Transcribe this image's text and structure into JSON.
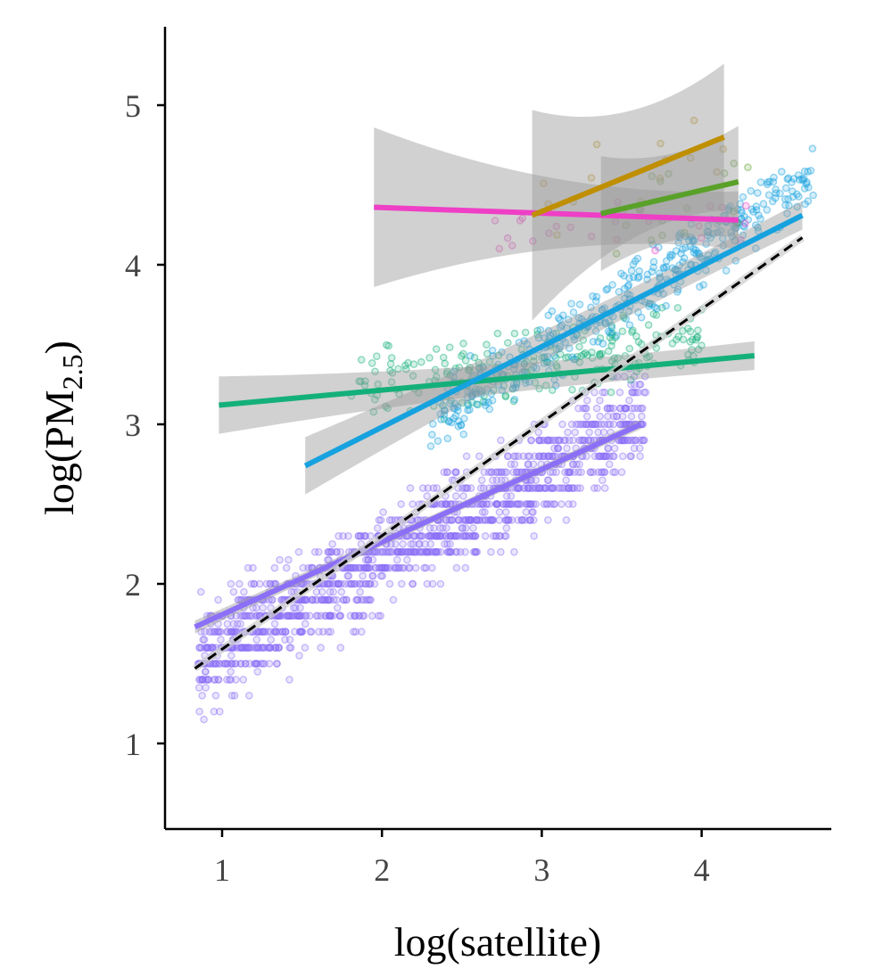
{
  "chart_data": {
    "type": "scatter",
    "title": "",
    "xlabel": "log(satellite)",
    "ylabel": {
      "prefix": "log(PM",
      "subscript": "2.5",
      "suffix": ")"
    },
    "xlim": [
      0.65,
      4.8
    ],
    "ylim": [
      0.45,
      5.5
    ],
    "x_ticks": [
      1,
      2,
      3,
      4
    ],
    "y_ticks": [
      1,
      2,
      3,
      4,
      5
    ],
    "x_tick_labels": [
      "1",
      "2",
      "3",
      "4"
    ],
    "y_tick_labels": [
      "1",
      "2",
      "3",
      "4",
      "5"
    ],
    "grid": false,
    "legend": "none",
    "reference_line": {
      "name": "overall fit",
      "style": "dashed",
      "color": "#000000",
      "x": [
        0.83,
        4.63
      ],
      "y": [
        1.47,
        4.17
      ]
    },
    "series": [
      {
        "name": "purple",
        "color": "#8c6ff7",
        "fit_x": [
          0.83,
          3.62
        ],
        "fit_y": [
          1.73,
          3.0
        ],
        "ci": [
          0.04,
          0.03
        ],
        "n_points": 1400,
        "cloud": {
          "x_range": [
            0.85,
            3.65
          ],
          "y_base": [
            1.5,
            3.05
          ],
          "y_spread": 0.45
        }
      },
      {
        "name": "teal",
        "color": "#14b07a",
        "fit_x": [
          0.98,
          4.33
        ],
        "fit_y": [
          3.12,
          3.43
        ],
        "ci": [
          0.18,
          0.09
        ],
        "n_points": 220,
        "cloud": {
          "x_range": [
            1.8,
            4.0
          ],
          "y_base": [
            3.2,
            3.55
          ],
          "y_spread": 0.35
        }
      },
      {
        "name": "blue",
        "color": "#16a2df",
        "fit_x": [
          1.52,
          4.63
        ],
        "fit_y": [
          2.74,
          4.31
        ],
        "ci": [
          0.18,
          0.09
        ],
        "n_points": 420,
        "cloud": {
          "x_range": [
            2.3,
            4.7
          ],
          "y_base": [
            3.0,
            4.55
          ],
          "y_spread": 0.3
        }
      },
      {
        "name": "pink",
        "color": "#ee3fc6",
        "fit_x": [
          1.95,
          4.23
        ],
        "fit_y": [
          4.36,
          4.28
        ],
        "ci": [
          0.5,
          0.18
        ],
        "n_points": 25,
        "cloud": {
          "x_range": [
            2.7,
            4.3
          ],
          "y_base": [
            4.2,
            4.3
          ],
          "y_spread": 0.2
        }
      },
      {
        "name": "gold",
        "color": "#bf8f00",
        "fit_x": [
          2.94,
          4.14
        ],
        "fit_y": [
          4.31,
          4.8
        ],
        "ci": [
          0.66,
          0.46
        ],
        "n_points": 14,
        "cloud": {
          "x_range": [
            2.9,
            4.2
          ],
          "y_base": [
            4.4,
            4.8
          ],
          "y_spread": 0.35
        }
      },
      {
        "name": "green",
        "color": "#5aa12a",
        "fit_x": [
          3.37,
          4.23
        ],
        "fit_y": [
          4.32,
          4.52
        ],
        "ci": [
          0.36,
          0.35
        ],
        "n_points": 18,
        "cloud": {
          "x_range": [
            3.3,
            4.3
          ],
          "y_base": [
            4.2,
            4.5
          ],
          "y_spread": 0.35
        }
      }
    ]
  }
}
